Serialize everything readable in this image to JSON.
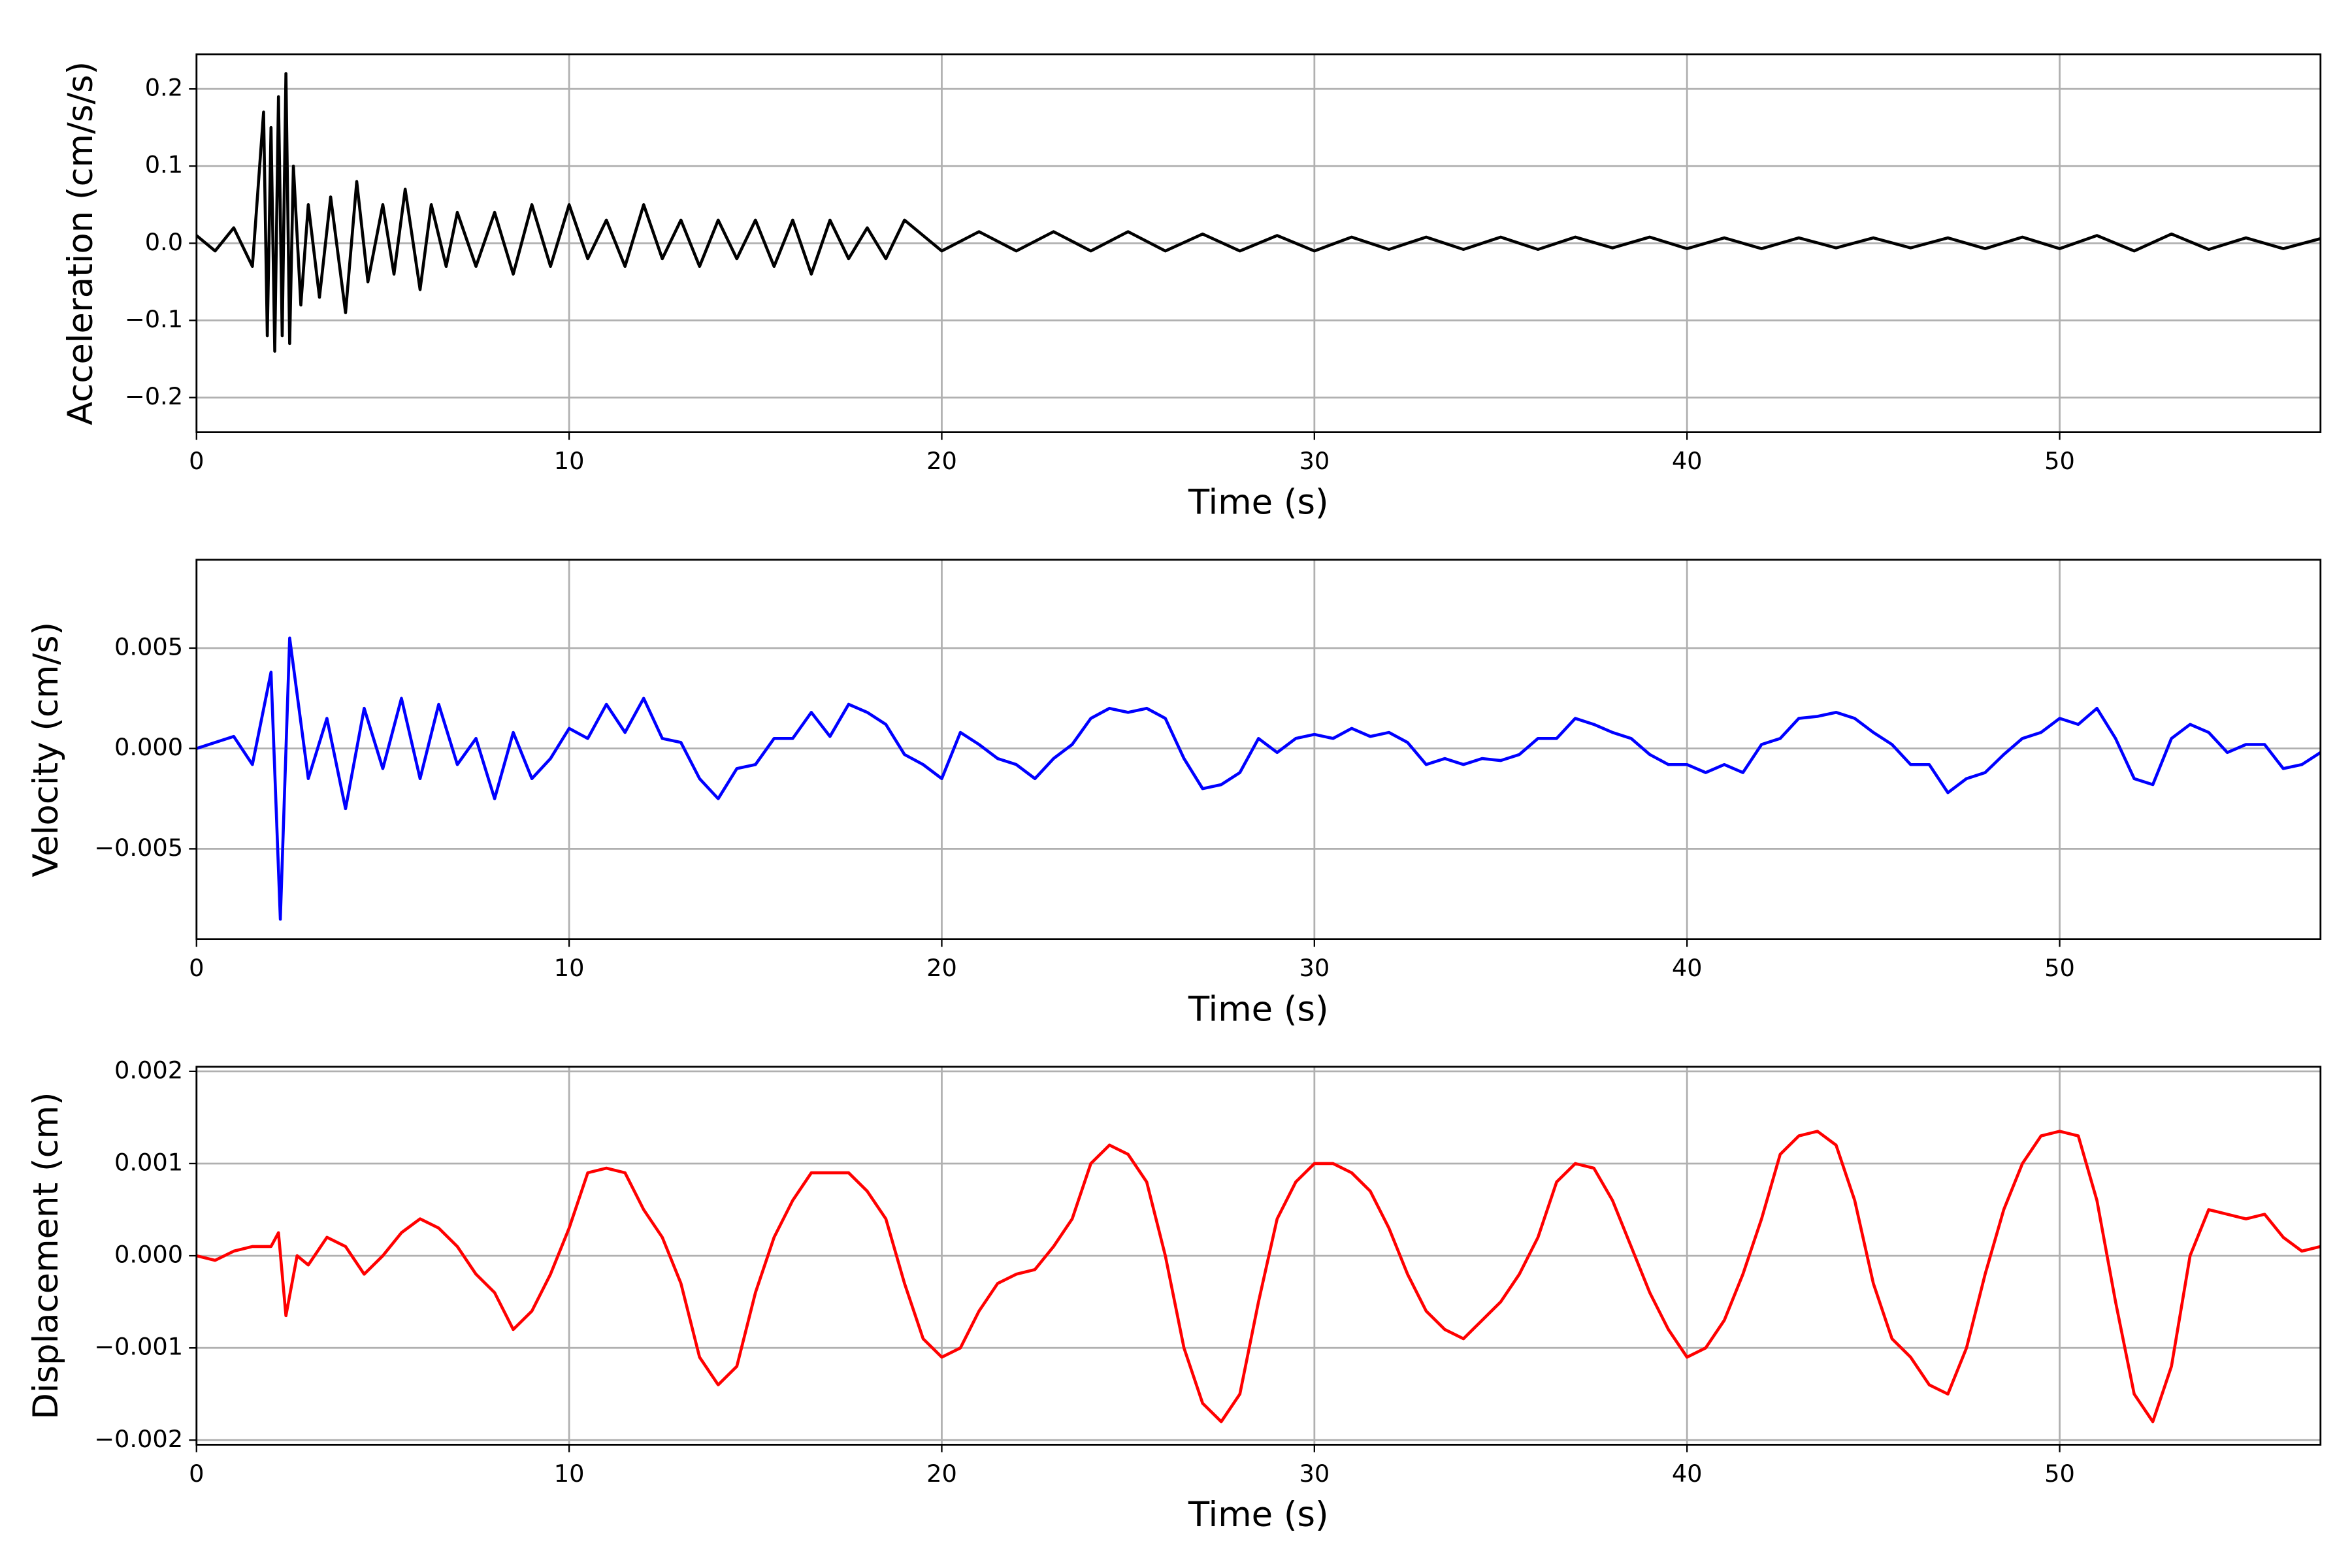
{
  "chart_data": [
    {
      "type": "line",
      "xlabel": "Time (s)",
      "ylabel": "Acceleration (cm/s/s)",
      "color": "#000000",
      "grid": true,
      "xlim": [
        0,
        57
      ],
      "xticks": [
        0,
        10,
        20,
        30,
        40,
        50
      ],
      "ylim": [
        -0.245,
        0.245
      ],
      "yticks": [
        {
          "value": -0.2,
          "label": "−0.2"
        },
        {
          "value": -0.1,
          "label": "−0.1"
        },
        {
          "value": 0,
          "label": "0.0"
        },
        0.1,
        0.2
      ],
      "x": [
        0,
        0.5,
        1,
        1.5,
        1.8,
        1.9,
        2.0,
        2.1,
        2.2,
        2.3,
        2.4,
        2.5,
        2.6,
        2.8,
        3.0,
        3.3,
        3.6,
        4.0,
        4.3,
        4.6,
        5.0,
        5.3,
        5.6,
        6.0,
        6.3,
        6.7,
        7.0,
        7.5,
        8.0,
        8.5,
        9.0,
        9.5,
        10.0,
        10.5,
        11,
        11.5,
        12,
        12.5,
        13,
        13.5,
        14,
        14.5,
        15,
        15.5,
        16,
        16.5,
        17,
        17.5,
        18,
        18.5,
        19,
        20,
        21,
        22,
        23,
        24,
        25,
        26,
        27,
        28,
        29,
        30,
        31,
        32,
        33,
        34,
        35,
        36,
        37,
        38,
        39,
        40,
        41,
        42,
        43,
        44,
        45,
        46,
        47,
        48,
        49,
        50,
        51,
        52,
        53,
        54,
        55,
        56,
        57
      ],
      "values": [
        0.01,
        -0.01,
        0.02,
        -0.03,
        0.17,
        -0.12,
        0.15,
        -0.14,
        0.19,
        -0.12,
        0.22,
        -0.13,
        0.1,
        -0.08,
        0.05,
        -0.07,
        0.06,
        -0.09,
        0.08,
        -0.05,
        0.05,
        -0.04,
        0.07,
        -0.06,
        0.05,
        -0.03,
        0.04,
        -0.03,
        0.04,
        -0.04,
        0.05,
        -0.03,
        0.05,
        -0.02,
        0.03,
        -0.03,
        0.05,
        -0.02,
        0.03,
        -0.03,
        0.03,
        -0.02,
        0.03,
        -0.03,
        0.03,
        -0.04,
        0.03,
        -0.02,
        0.02,
        -0.02,
        0.03,
        -0.01,
        0.015,
        -0.01,
        0.015,
        -0.01,
        0.015,
        -0.01,
        0.012,
        -0.01,
        0.01,
        -0.01,
        0.008,
        -0.008,
        0.008,
        -0.008,
        0.008,
        -0.008,
        0.008,
        -0.006,
        0.008,
        -0.007,
        0.007,
        -0.007,
        0.007,
        -0.006,
        0.007,
        -0.006,
        0.007,
        -0.007,
        0.008,
        -0.007,
        0.01,
        -0.01,
        0.012,
        -0.008,
        0.007,
        -0.007,
        0.006
      ]
    },
    {
      "type": "line",
      "xlabel": "Time (s)",
      "ylabel": "Velocity (cm/s)",
      "color": "#0000ff",
      "grid": true,
      "xlim": [
        0,
        57
      ],
      "xticks": [
        0,
        10,
        20,
        30,
        40,
        50
      ],
      "ylim": [
        -0.0095,
        0.0094
      ],
      "yticks": [
        {
          "value": -0.005,
          "label": "−0.005"
        },
        {
          "value": 0,
          "label": "0.000"
        },
        0.005
      ],
      "x": [
        0,
        0.5,
        1,
        1.5,
        2,
        2.25,
        2.5,
        3,
        3.5,
        4,
        4.5,
        5,
        5.5,
        6,
        6.5,
        7,
        7.5,
        8,
        8.5,
        9,
        9.5,
        10,
        10.5,
        11,
        11.5,
        12,
        12.5,
        13,
        13.5,
        14,
        14.5,
        15,
        15.5,
        16,
        16.5,
        17,
        17.5,
        18,
        18.5,
        19,
        19.5,
        20,
        20.5,
        21,
        21.5,
        22,
        22.5,
        23,
        23.5,
        24,
        24.5,
        25,
        25.5,
        26,
        26.5,
        27,
        27.5,
        28,
        28.5,
        29,
        29.5,
        30,
        30.5,
        31,
        31.5,
        32,
        32.5,
        33,
        33.5,
        34,
        34.5,
        35,
        35.5,
        36,
        36.5,
        37,
        37.5,
        38,
        38.5,
        39,
        39.5,
        40,
        40.5,
        41,
        41.5,
        42,
        42.5,
        43,
        43.5,
        44,
        44.5,
        45,
        45.5,
        46,
        46.5,
        47,
        47.5,
        48,
        48.5,
        49,
        49.5,
        50,
        50.5,
        51,
        51.5,
        52,
        52.5,
        53,
        53.5,
        54,
        54.5,
        55,
        55.5,
        56,
        56.5,
        57
      ],
      "values": [
        0,
        0.0003,
        0.0006,
        -0.0008,
        0.0038,
        -0.0085,
        0.0055,
        -0.0015,
        0.0015,
        -0.003,
        0.002,
        -0.001,
        0.0025,
        -0.0015,
        0.0022,
        -0.0008,
        0.0005,
        -0.0025,
        0.0008,
        -0.0015,
        -0.0005,
        0.001,
        0.0005,
        0.0022,
        0.0008,
        0.0025,
        0.0005,
        0.0003,
        -0.0015,
        -0.0025,
        -0.001,
        -0.0008,
        0.0005,
        0.0005,
        0.0018,
        0.0006,
        0.0022,
        0.0018,
        0.0012,
        -0.0003,
        -0.0008,
        -0.0015,
        0.0008,
        0.0002,
        -0.0005,
        -0.0008,
        -0.0015,
        -0.0005,
        0.0002,
        0.0015,
        0.002,
        0.0018,
        0.002,
        0.0015,
        -0.0005,
        -0.002,
        -0.0018,
        -0.0012,
        0.0005,
        -0.0002,
        0.0005,
        0.0007,
        0.0005,
        0.001,
        0.0006,
        0.0008,
        0.0003,
        -0.0008,
        -0.0005,
        -0.0008,
        -0.0005,
        -0.0006,
        -0.0003,
        0.0005,
        0.0005,
        0.0015,
        0.0012,
        0.0008,
        0.0005,
        -0.0003,
        -0.0008,
        -0.0008,
        -0.0012,
        -0.0008,
        -0.0012,
        0.0002,
        0.0005,
        0.0015,
        0.0016,
        0.0018,
        0.0015,
        0.0008,
        0.0002,
        -0.0008,
        -0.0008,
        -0.0022,
        -0.0015,
        -0.0012,
        -0.0003,
        0.0005,
        0.0008,
        0.0015,
        0.0012,
        0.002,
        0.0005,
        -0.0015,
        -0.0018,
        0.0005,
        0.0012,
        0.0008,
        -0.0002,
        0.0002,
        0.0002,
        -0.001,
        -0.0008,
        -0.0002
      ]
    },
    {
      "type": "line",
      "xlabel": "Time (s)",
      "ylabel": "Displacement (cm)",
      "color": "#ff0000",
      "grid": true,
      "xlim": [
        0,
        57
      ],
      "xticks": [
        0,
        10,
        20,
        30,
        40,
        50
      ],
      "ylim": [
        -0.00205,
        0.00205
      ],
      "yticks": [
        {
          "value": -0.002,
          "label": "−0.002"
        },
        {
          "value": -0.001,
          "label": "−0.001"
        },
        {
          "value": 0,
          "label": "0.000"
        },
        0.001,
        0.002
      ],
      "x": [
        0,
        0.5,
        1,
        1.5,
        2,
        2.2,
        2.4,
        2.7,
        3,
        3.5,
        4,
        4.5,
        5,
        5.5,
        6,
        6.5,
        7,
        7.5,
        8,
        8.5,
        9,
        9.5,
        10,
        10.5,
        11,
        11.5,
        12,
        12.5,
        13,
        13.5,
        14,
        14.5,
        15,
        15.5,
        16,
        16.5,
        17,
        17.5,
        18,
        18.5,
        19,
        19.5,
        20,
        20.5,
        21,
        21.5,
        22,
        22.5,
        23,
        23.5,
        24,
        24.5,
        25,
        25.5,
        26,
        26.5,
        27,
        27.5,
        28,
        28.5,
        29,
        29.5,
        30,
        30.5,
        31,
        31.5,
        32,
        32.5,
        33,
        33.5,
        34,
        34.5,
        35,
        35.5,
        36,
        36.5,
        37,
        37.5,
        38,
        38.5,
        39,
        39.5,
        40,
        40.5,
        41,
        41.5,
        42,
        42.5,
        43,
        43.5,
        44,
        44.5,
        45,
        45.5,
        46,
        46.5,
        47,
        47.5,
        48,
        48.5,
        49,
        49.5,
        50,
        50.5,
        51,
        51.5,
        52,
        52.5,
        53,
        53.5,
        54,
        54.5,
        55,
        55.5,
        56,
        56.5,
        57
      ],
      "values": [
        0,
        -5e-05,
        5e-05,
        0.0001,
        0.0001,
        0.00025,
        -0.00065,
        0,
        -0.0001,
        0.0002,
        0.0001,
        -0.0002,
        0,
        0.00025,
        0.0004,
        0.0003,
        0.0001,
        -0.0002,
        -0.0004,
        -0.0008,
        -0.0006,
        -0.0002,
        0.0003,
        0.0009,
        0.00095,
        0.0009,
        0.0005,
        0.0002,
        -0.0003,
        -0.0011,
        -0.0014,
        -0.0012,
        -0.0004,
        0.0002,
        0.0006,
        0.0009,
        0.0009,
        0.0009,
        0.0007,
        0.0004,
        -0.0003,
        -0.0009,
        -0.0011,
        -0.001,
        -0.0006,
        -0.0003,
        -0.0002,
        -0.00015,
        0.0001,
        0.0004,
        0.001,
        0.0012,
        0.0011,
        0.0008,
        0,
        -0.001,
        -0.0016,
        -0.0018,
        -0.0015,
        -0.0005,
        0.0004,
        0.0008,
        0.001,
        0.001,
        0.0009,
        0.0007,
        0.0003,
        -0.0002,
        -0.0006,
        -0.0008,
        -0.0009,
        -0.0007,
        -0.0005,
        -0.0002,
        0.0002,
        0.0008,
        0.001,
        0.00095,
        0.0006,
        0.0001,
        -0.0004,
        -0.0008,
        -0.0011,
        -0.001,
        -0.0007,
        -0.0002,
        0.0004,
        0.0011,
        0.0013,
        0.00135,
        0.0012,
        0.0006,
        -0.0003,
        -0.0009,
        -0.0011,
        -0.0014,
        -0.0015,
        -0.001,
        -0.0002,
        0.0005,
        0.001,
        0.0013,
        0.00135,
        0.0013,
        0.0006,
        -0.0005,
        -0.0015,
        -0.0018,
        -0.0012,
        0,
        0.0005,
        0.00045,
        0.0004,
        0.00045,
        0.0002,
        5e-05,
        0.0001
      ]
    }
  ]
}
